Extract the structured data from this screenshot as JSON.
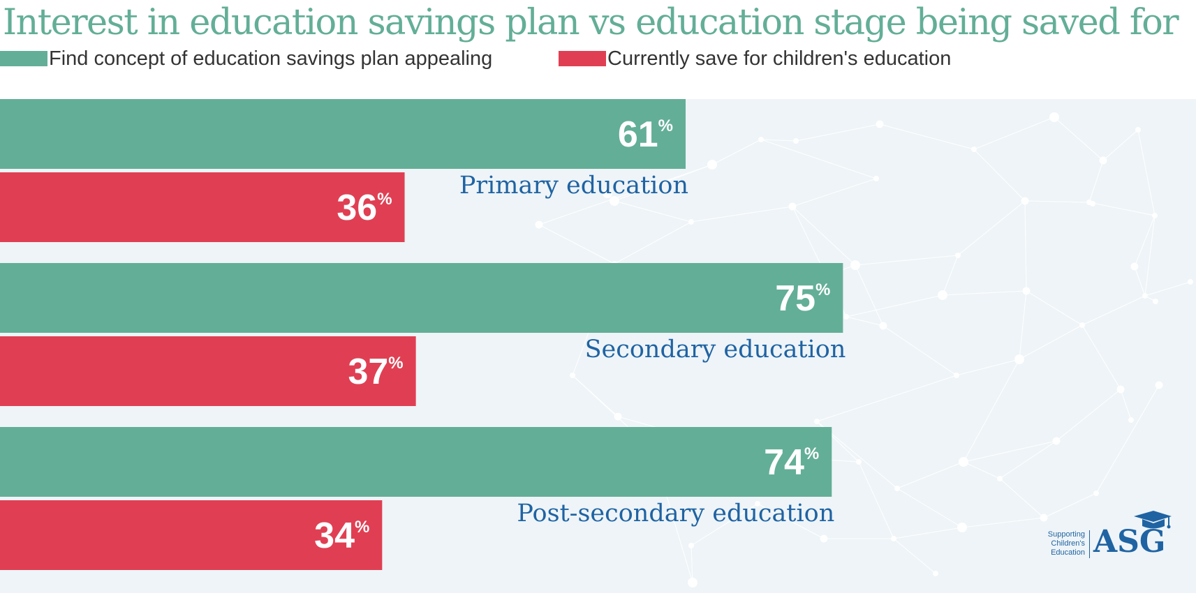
{
  "chart_data": {
    "type": "bar",
    "orientation": "horizontal",
    "title": "Interest in education savings plan vs education stage being saved for",
    "categories": [
      "Primary education",
      "Secondary education",
      "Post-secondary education"
    ],
    "series": [
      {
        "name": "Find concept of education savings plan appealing",
        "values": [
          61,
          75,
          74
        ],
        "labels": [
          "61",
          "75",
          "74"
        ],
        "color": "#63ae97"
      },
      {
        "name": "Currently save for children's education",
        "values": [
          36,
          37,
          34
        ],
        "labels": [
          "36",
          "37",
          "34"
        ],
        "color": "#e03f53"
      }
    ],
    "value_suffix": "%",
    "xlim": [
      0,
      100
    ],
    "legend_position": "top-left",
    "grid": false
  },
  "logo": {
    "brand": "ASG",
    "tagline": [
      "Supporting",
      "Children's",
      "Education"
    ],
    "icon": "graduation-cap-icon"
  },
  "colors": {
    "title": "#63ae97",
    "category_label": "#1f63a3",
    "plot_background": "#eef4f7",
    "network_pattern": "#ffffff"
  }
}
